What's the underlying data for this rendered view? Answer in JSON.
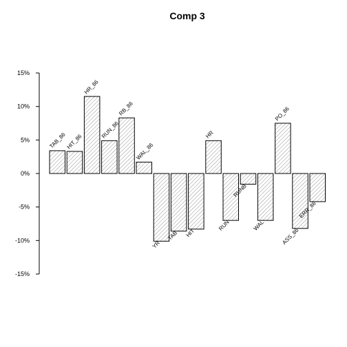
{
  "chart_data": {
    "type": "bar",
    "title": "Comp 3",
    "xlabel": "",
    "ylabel": "",
    "ylim": [
      -15,
      15
    ],
    "yticks": [
      -15,
      -10,
      -5,
      0,
      5,
      10,
      15
    ],
    "ytick_labels": [
      "-15%",
      "-10%",
      "-5%",
      "0%",
      "5%",
      "10%",
      "15%"
    ],
    "grid": false,
    "fill": "hatched",
    "categories": [
      "TAB_86",
      "HIT_86",
      "HR_86",
      "RUN_86",
      "RB_86",
      "WAL_86",
      "YR",
      "TAB",
      "HIT",
      "HR",
      "RUN",
      "RUNB",
      "WAL",
      "PO_86",
      "ASS_86",
      "ERR_86"
    ],
    "values": [
      3.4,
      3.3,
      11.5,
      4.9,
      8.3,
      1.7,
      -10.1,
      -8.6,
      -8.3,
      4.9,
      -7.0,
      -1.6,
      -7.0,
      7.5,
      -8.2,
      -4.2
    ]
  }
}
